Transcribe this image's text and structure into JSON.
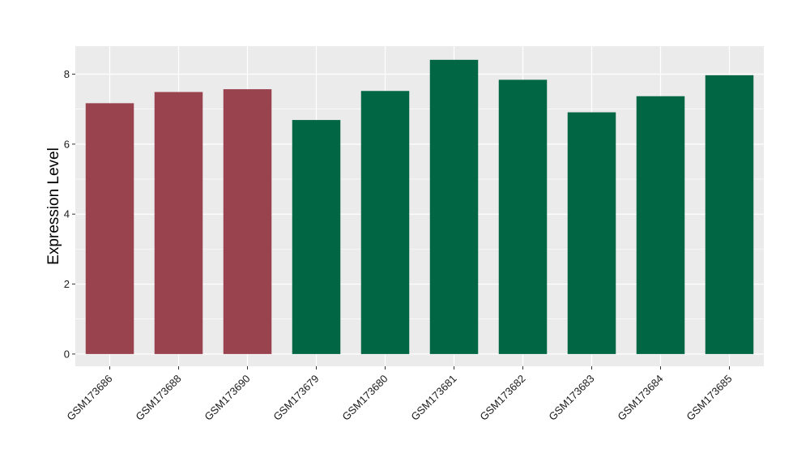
{
  "chart_data": {
    "type": "bar",
    "title": "",
    "xlabel": "",
    "ylabel": "Expression Level",
    "ylim": [
      -0.35,
      8.8
    ],
    "yticks": [
      0,
      2,
      4,
      6,
      8
    ],
    "grid": true,
    "legend": "none",
    "categories": [
      "GSM173686",
      "GSM173688",
      "GSM173690",
      "GSM173679",
      "GSM173680",
      "GSM173681",
      "GSM173682",
      "GSM173683",
      "GSM173684",
      "GSM173685"
    ],
    "values": [
      7.17,
      7.49,
      7.57,
      6.69,
      7.52,
      8.41,
      7.84,
      6.91,
      7.37,
      7.97
    ],
    "group_colors": [
      "#99434f",
      "#99434f",
      "#99434f",
      "#006644",
      "#006644",
      "#006644",
      "#006644",
      "#006644",
      "#006644",
      "#006644"
    ],
    "colors": {
      "panel": "#ebebeb",
      "grid": "#ffffff",
      "tick": "#333333"
    }
  }
}
